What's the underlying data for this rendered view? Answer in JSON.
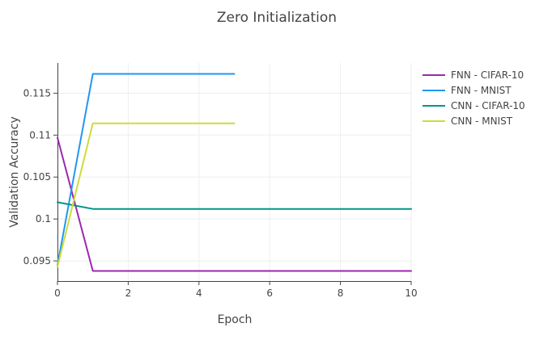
{
  "chart_data": {
    "type": "line",
    "title": "Zero Initialization",
    "xlabel": "Epoch",
    "ylabel": "Validation Accuracy",
    "xlim": [
      0,
      10
    ],
    "ylim": [
      0.0926,
      0.1186
    ],
    "x_ticks": [
      "0",
      "2",
      "4",
      "6",
      "8",
      "10"
    ],
    "y_ticks": [
      "0.095",
      "0.1",
      "0.105",
      "0.11",
      "0.115"
    ],
    "grid": true,
    "legend_position": "right",
    "series": [
      {
        "name": "FNN - CIFAR-10",
        "color": "#9c27b0",
        "x": [
          0,
          1,
          2,
          3,
          4,
          5,
          6,
          7,
          8,
          9,
          10
        ],
        "values": [
          0.1097,
          0.0938,
          0.0938,
          0.0938,
          0.0938,
          0.0938,
          0.0938,
          0.0938,
          0.0938,
          0.0938,
          0.0938
        ]
      },
      {
        "name": "FNN - MNIST",
        "color": "#2196f3",
        "x": [
          0,
          1,
          2,
          3,
          4,
          5
        ],
        "values": [
          0.0945,
          0.1173,
          0.1173,
          0.1173,
          0.1173,
          0.1173
        ]
      },
      {
        "name": "CNN - CIFAR-10",
        "color": "#009688",
        "x": [
          0,
          1,
          2,
          3,
          4,
          5,
          6,
          7,
          8,
          9,
          10
        ],
        "values": [
          0.102,
          0.1012,
          0.1012,
          0.1012,
          0.1012,
          0.1012,
          0.1012,
          0.1012,
          0.1012,
          0.1012,
          0.1012
        ]
      },
      {
        "name": "CNN - MNIST",
        "color": "#cddc39",
        "x": [
          0,
          1,
          2,
          3,
          4,
          5
        ],
        "values": [
          0.0943,
          0.1114,
          0.1114,
          0.1114,
          0.1114,
          0.1114
        ]
      }
    ]
  }
}
